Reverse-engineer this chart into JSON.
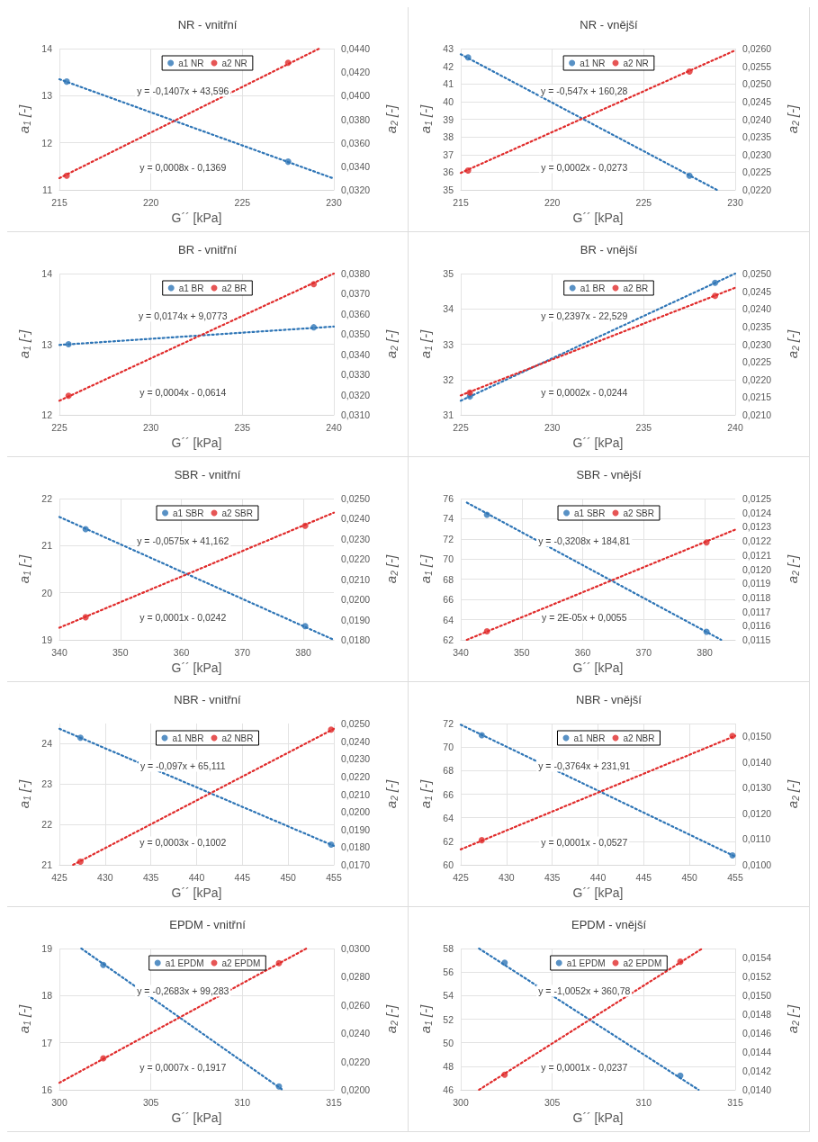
{
  "chart_data": [
    {
      "type": "scatter",
      "title": "NR - vnitřní",
      "xlabel": "G´´ [kPa]",
      "ylabel": "a$_{1}$ [-]",
      "y2label": "a$_{2}$ [-]",
      "xlim": [
        215,
        230
      ],
      "xticks": [
        215,
        220,
        225,
        230
      ],
      "ylim": [
        11,
        14
      ],
      "yticks": [
        11,
        12,
        13,
        14
      ],
      "y2lim": [
        0.032,
        0.044
      ],
      "y2ticks": [
        {
          "value": 0.032,
          "label": "0,0320"
        },
        {
          "value": 0.034,
          "label": "0,0340"
        },
        {
          "value": 0.036,
          "label": "0,0360"
        },
        {
          "value": 0.038,
          "label": "0,0380"
        },
        {
          "value": 0.04,
          "label": "0,0400"
        },
        {
          "value": 0.042,
          "label": "0,0420"
        },
        {
          "value": 0.044,
          "label": "0,0440"
        }
      ],
      "grid": true,
      "legend": "top",
      "marker": "circle",
      "series": [
        {
          "name": "a1 NR",
          "color": "#2e75b6",
          "x": [
            215.4,
            227.5
          ],
          "values": [
            13.3,
            11.6
          ]
        },
        {
          "name": "a2 NR",
          "color": "#e02b2b",
          "axis": "y2",
          "x": [
            215.4,
            227.5
          ],
          "values": [
            0.0332,
            0.0428
          ]
        },
        {
          "type": "line",
          "color": "#2e75b6",
          "line_style": "dotted",
          "marker": "none",
          "x": [
            215,
            230
          ],
          "values": [
            13.35,
            11.24
          ]
        },
        {
          "type": "line",
          "color": "#e02b2b",
          "line_style": "dotted",
          "marker": "none",
          "axis": "y2",
          "x": [
            215,
            229.2
          ],
          "values": [
            0.033,
            0.044
          ]
        }
      ],
      "annotations": [
        "y = -0,1407x + 43,596",
        "y = 0,0008x - 0,1369"
      ]
    },
    {
      "type": "scatter",
      "title": "NR - vnější",
      "xlabel": "G´´ [kPa]",
      "ylabel": "a$_{1}$ [-]",
      "y2label": "a$_{2}$ [-]",
      "xlim": [
        215,
        230
      ],
      "xticks": [
        215,
        220,
        225,
        230
      ],
      "ylim": [
        35,
        43
      ],
      "yticks": [
        35,
        36,
        37,
        38,
        39,
        40,
        41,
        42,
        43
      ],
      "y2lim": [
        0.022,
        0.026
      ],
      "y2ticks": [
        {
          "value": 0.022,
          "label": "0,0220"
        },
        {
          "value": 0.0225,
          "label": "0,0225"
        },
        {
          "value": 0.023,
          "label": "0,0230"
        },
        {
          "value": 0.0235,
          "label": "0,0235"
        },
        {
          "value": 0.024,
          "label": "0,0240"
        },
        {
          "value": 0.0245,
          "label": "0,0245"
        },
        {
          "value": 0.025,
          "label": "0,0250"
        },
        {
          "value": 0.0255,
          "label": "0,0255"
        },
        {
          "value": 0.026,
          "label": "0,0260"
        }
      ],
      "grid": true,
      "legend": "top",
      "marker": "circle",
      "series": [
        {
          "name": "a1 NR",
          "color": "#2e75b6",
          "x": [
            215.4,
            227.5
          ],
          "values": [
            42.5,
            35.8
          ]
        },
        {
          "name": "a2 NR",
          "color": "#e02b2b",
          "axis": "y2",
          "x": [
            215.4,
            227.5
          ],
          "values": [
            0.02255,
            0.02535
          ]
        },
        {
          "type": "line",
          "color": "#2e75b6",
          "line_style": "dotted",
          "marker": "none",
          "x": [
            215,
            229
          ],
          "values": [
            42.68,
            35
          ]
        },
        {
          "type": "line",
          "color": "#e02b2b",
          "line_style": "dotted",
          "marker": "none",
          "axis": "y2",
          "x": [
            215,
            230
          ],
          "values": [
            0.02248,
            0.02595
          ]
        }
      ],
      "annotations": [
        "y = -0,547x + 160,28",
        "y = 0,0002x - 0,0273"
      ]
    },
    {
      "type": "scatter",
      "title": "BR - vnitřní",
      "xlabel": "G´´ [kPa]",
      "ylabel": "a$_{1}$ [-]",
      "y2label": "a$_{2}$ [-]",
      "xlim": [
        225,
        240
      ],
      "xticks": [
        225,
        230,
        235,
        240
      ],
      "ylim": [
        12,
        14
      ],
      "yticks": [
        12,
        13,
        14
      ],
      "y2lim": [
        0.031,
        0.038
      ],
      "y2ticks": [
        {
          "value": 0.031,
          "label": "0,0310"
        },
        {
          "value": 0.032,
          "label": "0,0320"
        },
        {
          "value": 0.033,
          "label": "0,0330"
        },
        {
          "value": 0.034,
          "label": "0,0340"
        },
        {
          "value": 0.035,
          "label": "0,0350"
        },
        {
          "value": 0.036,
          "label": "0,0360"
        },
        {
          "value": 0.037,
          "label": "0,0370"
        },
        {
          "value": 0.038,
          "label": "0,0380"
        }
      ],
      "grid": true,
      "legend": "top",
      "marker": "circle",
      "series": [
        {
          "name": "a1 BR",
          "color": "#2e75b6",
          "x": [
            225.5,
            238.9
          ],
          "values": [
            13.0,
            13.24
          ]
        },
        {
          "name": "a2 BR",
          "color": "#e02b2b",
          "axis": "y2",
          "x": [
            225.5,
            238.9
          ],
          "values": [
            0.03195,
            0.03748
          ]
        },
        {
          "type": "line",
          "color": "#2e75b6",
          "line_style": "dotted",
          "marker": "none",
          "x": [
            225,
            240
          ],
          "values": [
            12.99,
            13.25
          ]
        },
        {
          "type": "line",
          "color": "#e02b2b",
          "line_style": "dotted",
          "marker": "none",
          "axis": "y2",
          "x": [
            225,
            240
          ],
          "values": [
            0.0317,
            0.038
          ]
        }
      ],
      "annotations": [
        "y = 0,0174x + 9,0773",
        "y = 0,0004x - 0,0614"
      ]
    },
    {
      "type": "scatter",
      "title": "BR - vnější",
      "xlabel": "G´´ [kPa]",
      "ylabel": "a$_{1}$ [-]",
      "y2label": "a$_{2}$ [-]",
      "xlim": [
        225,
        240
      ],
      "xticks": [
        225,
        230,
        235,
        240
      ],
      "ylim": [
        31,
        35
      ],
      "yticks": [
        31,
        32,
        33,
        34,
        35
      ],
      "y2lim": [
        0.021,
        0.025
      ],
      "y2ticks": [
        {
          "value": 0.021,
          "label": "0,0210"
        },
        {
          "value": 0.0215,
          "label": "0,0215"
        },
        {
          "value": 0.022,
          "label": "0,0220"
        },
        {
          "value": 0.0225,
          "label": "0,0225"
        },
        {
          "value": 0.023,
          "label": "0,0230"
        },
        {
          "value": 0.0235,
          "label": "0,0235"
        },
        {
          "value": 0.024,
          "label": "0,0240"
        },
        {
          "value": 0.0245,
          "label": "0,0245"
        },
        {
          "value": 0.025,
          "label": "0,0250"
        }
      ],
      "grid": true,
      "legend": "top",
      "marker": "circle",
      "series": [
        {
          "name": "a1 BR",
          "color": "#2e75b6",
          "x": [
            225.5,
            238.9
          ],
          "values": [
            31.52,
            34.74
          ]
        },
        {
          "name": "a2 BR",
          "color": "#e02b2b",
          "axis": "y2",
          "x": [
            225.5,
            238.9
          ],
          "values": [
            0.02163,
            0.02437
          ]
        },
        {
          "type": "line",
          "color": "#2e75b6",
          "line_style": "dotted",
          "marker": "none",
          "x": [
            225,
            240
          ],
          "values": [
            31.4,
            35
          ]
        },
        {
          "type": "line",
          "color": "#e02b2b",
          "line_style": "dotted",
          "marker": "none",
          "axis": "y2",
          "x": [
            225,
            240
          ],
          "values": [
            0.02155,
            0.0246
          ]
        }
      ],
      "annotations": [
        "y = 0,2397x - 22,529",
        "y = 0,0002x - 0,0244"
      ]
    },
    {
      "type": "scatter",
      "title": "SBR - vnitřní",
      "xlabel": "G´´ [kPa]",
      "ylabel": "a$_{1}$ [-]",
      "y2label": "a$_{2}$ [-]",
      "xlim": [
        340,
        385
      ],
      "xticks": [
        340,
        350,
        360,
        370,
        380
      ],
      "ylim": [
        19,
        22
      ],
      "yticks": [
        19,
        20,
        21,
        22
      ],
      "y2lim": [
        0.018,
        0.025
      ],
      "y2ticks": [
        {
          "value": 0.018,
          "label": "0,0180"
        },
        {
          "value": 0.019,
          "label": "0,0190"
        },
        {
          "value": 0.02,
          "label": "0,0200"
        },
        {
          "value": 0.021,
          "label": "0,0210"
        },
        {
          "value": 0.022,
          "label": "0,0220"
        },
        {
          "value": 0.023,
          "label": "0,0230"
        },
        {
          "value": 0.024,
          "label": "0,0240"
        },
        {
          "value": 0.025,
          "label": "0,0250"
        }
      ],
      "grid": true,
      "legend": "top",
      "marker": "circle",
      "series": [
        {
          "name": "a1 SBR",
          "color": "#2e75b6",
          "x": [
            344.3,
            380.3
          ],
          "values": [
            21.35,
            19.29
          ]
        },
        {
          "name": "a2 SBR",
          "color": "#e02b2b",
          "axis": "y2",
          "x": [
            344.3,
            380.3
          ],
          "values": [
            0.01912,
            0.02365
          ]
        },
        {
          "type": "line",
          "color": "#2e75b6",
          "line_style": "dotted",
          "marker": "none",
          "x": [
            340,
            385
          ],
          "values": [
            21.61,
            19.0
          ]
        },
        {
          "type": "line",
          "color": "#e02b2b",
          "line_style": "dotted",
          "marker": "none",
          "axis": "y2",
          "x": [
            340,
            385
          ],
          "values": [
            0.0186,
            0.0243
          ]
        }
      ],
      "annotations": [
        "y = -0,0575x + 41,162",
        "y = 0,0001x - 0,0242"
      ]
    },
    {
      "type": "scatter",
      "title": "SBR - vnější",
      "xlabel": "G´´ [kPa]",
      "ylabel": "a$_{1}$ [-]",
      "y2label": "a$_{2}$ [-]",
      "xlim": [
        340,
        385
      ],
      "xticks": [
        340,
        350,
        360,
        370,
        380
      ],
      "ylim": [
        62,
        76
      ],
      "yticks": [
        62,
        64,
        66,
        68,
        70,
        72,
        74,
        76
      ],
      "y2lim": [
        0.0115,
        0.0125
      ],
      "y2ticks": [
        {
          "value": 0.0115,
          "label": "0,0115"
        },
        {
          "value": 0.0116,
          "label": "0,0116"
        },
        {
          "value": 0.0117,
          "label": "0,0117"
        },
        {
          "value": 0.0118,
          "label": "0,0118"
        },
        {
          "value": 0.0119,
          "label": "0,0119"
        },
        {
          "value": 0.012,
          "label": "0,0120"
        },
        {
          "value": 0.0121,
          "label": "0,0121"
        },
        {
          "value": 0.0122,
          "label": "0,0122"
        },
        {
          "value": 0.0123,
          "label": "0,0123"
        },
        {
          "value": 0.0124,
          "label": "0,0124"
        },
        {
          "value": 0.0125,
          "label": "0,0125"
        }
      ],
      "grid": true,
      "legend": "top",
      "marker": "circle",
      "series": [
        {
          "name": "a1 SBR",
          "color": "#2e75b6",
          "x": [
            344.3,
            380.3
          ],
          "values": [
            74.4,
            62.8
          ]
        },
        {
          "name": "a2 SBR",
          "color": "#e02b2b",
          "axis": "y2",
          "x": [
            344.3,
            380.3
          ],
          "values": [
            0.01156,
            0.01219
          ]
        },
        {
          "type": "line",
          "color": "#2e75b6",
          "line_style": "dotted",
          "marker": "none",
          "x": [
            341,
            382.7
          ],
          "values": [
            75.6,
            62
          ]
        },
        {
          "type": "line",
          "color": "#e02b2b",
          "line_style": "dotted",
          "marker": "none",
          "axis": "y2",
          "x": [
            341,
            385
          ],
          "values": [
            0.0115,
            0.01228
          ]
        }
      ],
      "annotations": [
        "y = -0,3208x + 184,81",
        "y = 2E-05x + 0,0055"
      ]
    },
    {
      "type": "scatter",
      "title": "NBR - vnitřní",
      "xlabel": "G´´ [kPa]",
      "ylabel": "a$_{1}$ [-]",
      "y2label": "a$_{2}$ [-]",
      "xlim": [
        425,
        455
      ],
      "xticks": [
        425,
        430,
        435,
        440,
        445,
        450,
        455
      ],
      "ylim": [
        21,
        24.5
      ],
      "yticks": [
        21,
        22,
        23,
        24
      ],
      "y2lim": [
        0.017,
        0.025
      ],
      "y2ticks": [
        {
          "value": 0.017,
          "label": "0,0170"
        },
        {
          "value": 0.018,
          "label": "0,0180"
        },
        {
          "value": 0.019,
          "label": "0,0190"
        },
        {
          "value": 0.02,
          "label": "0,0200"
        },
        {
          "value": 0.021,
          "label": "0,0210"
        },
        {
          "value": 0.022,
          "label": "0,0220"
        },
        {
          "value": 0.023,
          "label": "0,0230"
        },
        {
          "value": 0.024,
          "label": "0,0240"
        },
        {
          "value": 0.025,
          "label": "0,0250"
        }
      ],
      "grid": true,
      "legend": "top",
      "marker": "circle",
      "series": [
        {
          "name": "a1 NBR",
          "color": "#2e75b6",
          "x": [
            427.3,
            454.7
          ],
          "values": [
            24.15,
            21.5
          ]
        },
        {
          "name": "a2 NBR",
          "color": "#e02b2b",
          "axis": "y2",
          "x": [
            427.3,
            454.7
          ],
          "values": [
            0.01718,
            0.02466
          ]
        },
        {
          "type": "line",
          "color": "#2e75b6",
          "line_style": "dotted",
          "marker": "none",
          "x": [
            425,
            455
          ],
          "values": [
            24.37,
            21.47
          ]
        },
        {
          "type": "line",
          "color": "#e02b2b",
          "line_style": "dotted",
          "marker": "none",
          "axis": "y2",
          "x": [
            426.5,
            455
          ],
          "values": [
            0.017,
            0.0247
          ]
        }
      ],
      "annotations": [
        "y = -0,097x + 65,111",
        "y = 0,0003x - 0,1002"
      ]
    },
    {
      "type": "scatter",
      "title": "NBR - vnější",
      "xlabel": "G´´ [kPa]",
      "ylabel": "a$_{1}$ [-]",
      "y2label": "a$_{2}$ [-]",
      "xlim": [
        425,
        455
      ],
      "xticks": [
        425,
        430,
        435,
        440,
        445,
        450,
        455
      ],
      "ylim": [
        60,
        72
      ],
      "yticks": [
        60,
        62,
        64,
        66,
        68,
        70,
        72
      ],
      "y2lim": [
        0.01,
        0.0155
      ],
      "y2ticks": [
        {
          "value": 0.01,
          "label": "0,0100"
        },
        {
          "value": 0.011,
          "label": "0,0110"
        },
        {
          "value": 0.012,
          "label": "0,0120"
        },
        {
          "value": 0.013,
          "label": "0,0130"
        },
        {
          "value": 0.014,
          "label": "0,0140"
        },
        {
          "value": 0.015,
          "label": "0,0150"
        }
      ],
      "grid": true,
      "legend": "top",
      "marker": "circle",
      "series": [
        {
          "name": "a1 NBR",
          "color": "#2e75b6",
          "x": [
            427.3,
            454.7
          ],
          "values": [
            71.0,
            60.8
          ]
        },
        {
          "name": "a2 NBR",
          "color": "#e02b2b",
          "axis": "y2",
          "x": [
            427.3,
            454.7
          ],
          "values": [
            0.01096,
            0.01502
          ]
        },
        {
          "type": "line",
          "color": "#2e75b6",
          "line_style": "dotted",
          "marker": "none",
          "x": [
            425,
            455
          ],
          "values": [
            71.9,
            60.7
          ]
        },
        {
          "type": "line",
          "color": "#e02b2b",
          "line_style": "dotted",
          "marker": "none",
          "axis": "y2",
          "x": [
            425,
            455
          ],
          "values": [
            0.0106,
            0.01502
          ]
        }
      ],
      "annotations": [
        "y = -0,3764x + 231,91",
        "y = 0,0001x - 0,0527"
      ]
    },
    {
      "type": "scatter",
      "title": "EPDM - vnitřní",
      "xlabel": "G´´ [kPa]",
      "ylabel": "a$_{1}$ [-]",
      "y2label": "a$_{2}$ [-]",
      "xlim": [
        300,
        315
      ],
      "xticks": [
        300,
        305,
        310,
        315
      ],
      "ylim": [
        16,
        19
      ],
      "yticks": [
        16,
        17,
        18,
        19
      ],
      "y2lim": [
        0.02,
        0.03
      ],
      "y2ticks": [
        {
          "value": 0.02,
          "label": "0,0200"
        },
        {
          "value": 0.022,
          "label": "0,0220"
        },
        {
          "value": 0.024,
          "label": "0,0240"
        },
        {
          "value": 0.026,
          "label": "0,0260"
        },
        {
          "value": 0.028,
          "label": "0,0280"
        },
        {
          "value": 0.03,
          "label": "0,0300"
        }
      ],
      "grid": true,
      "legend": "top",
      "marker": "circle",
      "series": [
        {
          "name": "a1 EPDM",
          "color": "#2e75b6",
          "x": [
            302.4,
            312
          ],
          "values": [
            18.65,
            16.07
          ]
        },
        {
          "name": "a2 EPDM",
          "color": "#e02b2b",
          "axis": "y2",
          "x": [
            302.4,
            312
          ],
          "values": [
            0.02223,
            0.02897
          ]
        },
        {
          "type": "line",
          "color": "#2e75b6",
          "line_style": "dotted",
          "marker": "none",
          "x": [
            301.2,
            312.2
          ],
          "values": [
            19,
            16
          ]
        },
        {
          "type": "line",
          "color": "#e02b2b",
          "line_style": "dotted",
          "marker": "none",
          "axis": "y2",
          "x": [
            300,
            313.5
          ],
          "values": [
            0.0205,
            0.03
          ]
        }
      ],
      "annotations": [
        "y = -0,2683x + 99,283",
        "y = 0,0007x - 0,1917"
      ]
    },
    {
      "type": "scatter",
      "title": "EPDM - vnější",
      "xlabel": "G´´ [kPa]",
      "ylabel": "a$_{1}$ [-]",
      "y2label": "a$_{2}$ [-]",
      "xlim": [
        300,
        315
      ],
      "xticks": [
        300,
        305,
        310,
        315
      ],
      "ylim": [
        46,
        58
      ],
      "yticks": [
        46,
        48,
        50,
        52,
        54,
        56,
        58
      ],
      "y2lim": [
        0.014,
        0.0155
      ],
      "y2ticks": [
        {
          "value": 0.014,
          "label": "0,0140"
        },
        {
          "value": 0.0142,
          "label": "0,0142"
        },
        {
          "value": 0.0144,
          "label": "0,0144"
        },
        {
          "value": 0.0146,
          "label": "0,0146"
        },
        {
          "value": 0.0148,
          "label": "0,0148"
        },
        {
          "value": 0.015,
          "label": "0,0150"
        },
        {
          "value": 0.0152,
          "label": "0,0152"
        },
        {
          "value": 0.0154,
          "label": "0,0154"
        }
      ],
      "grid": true,
      "legend": "top",
      "marker": "circle",
      "series": [
        {
          "name": "a1 EPDM",
          "color": "#2e75b6",
          "x": [
            302.4,
            312
          ],
          "values": [
            56.8,
            47.2
          ]
        },
        {
          "name": "a2 EPDM",
          "color": "#e02b2b",
          "axis": "y2",
          "x": [
            302.4,
            312
          ],
          "values": [
            0.01416,
            0.01536
          ]
        },
        {
          "type": "line",
          "color": "#2e75b6",
          "line_style": "dotted",
          "marker": "none",
          "x": [
            301,
            313
          ],
          "values": [
            58,
            46
          ]
        },
        {
          "type": "line",
          "color": "#e02b2b",
          "line_style": "dotted",
          "marker": "none",
          "axis": "y2",
          "x": [
            301,
            313.2
          ],
          "values": [
            0.014,
            0.0155
          ]
        }
      ],
      "annotations": [
        "y = -1,0052x + 360,78",
        "y = 0,0001x - 0,0237"
      ]
    }
  ]
}
